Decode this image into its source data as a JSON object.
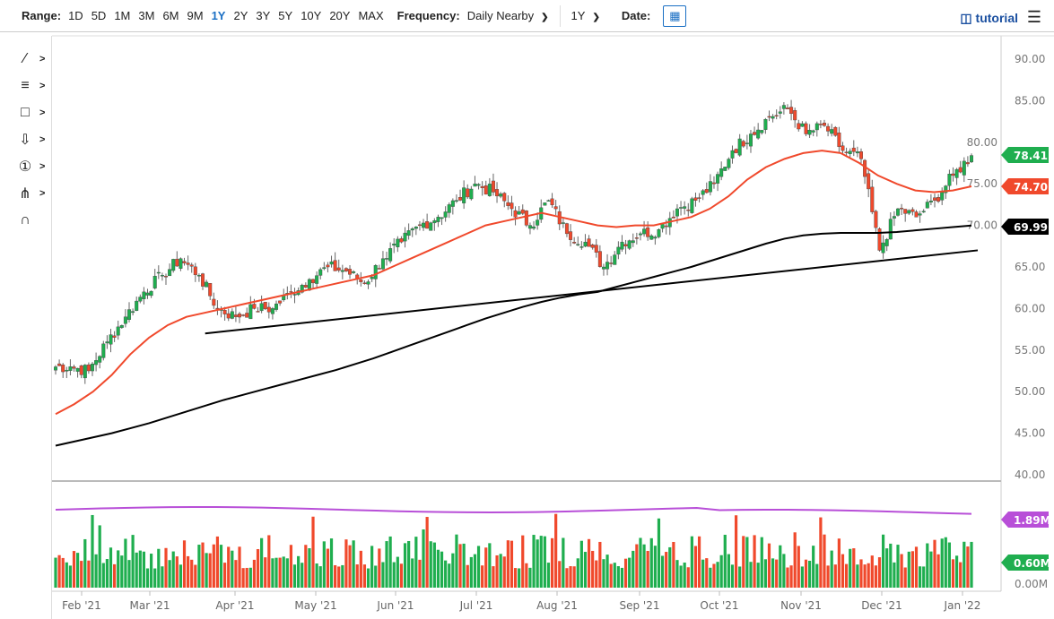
{
  "toolbar": {
    "range_label": "Range:",
    "ranges": [
      "1D",
      "5D",
      "1M",
      "3M",
      "6M",
      "9M",
      "1Y",
      "2Y",
      "3Y",
      "5Y",
      "10Y",
      "20Y",
      "MAX"
    ],
    "active_range": "1Y",
    "frequency_label": "Frequency:",
    "frequency_value": "Daily Nearby",
    "period_value": "1Y",
    "date_label": "Date:",
    "tutorial_label": "tutorial"
  },
  "tools": [
    "line-tool-icon",
    "list-tool-icon",
    "rectangle-tool-icon",
    "arrow-down-tool-icon",
    "number-marker-tool-icon",
    "fibonacci-tool-icon",
    "magnet-icon"
  ],
  "colors": {
    "up": "#1fae4f",
    "down": "#f0492c",
    "ma50": "#f0492c",
    "ma200": "#000000",
    "vol_ma": "#b84fd8",
    "accent": "#1a6fc4"
  },
  "chart_data": {
    "type": "candlestick",
    "x_tick_labels": [
      "Feb '21",
      "Mar '21",
      "Apr '21",
      "May '21",
      "Jun '21",
      "Jul '21",
      "Aug '21",
      "Sep '21",
      "Oct '21",
      "Nov '21",
      "Dec '21",
      "Jan '22"
    ],
    "y_tick_labels": [
      "90.00",
      "85.00",
      "80.00",
      "75.00",
      "70.00",
      "65.00",
      "60.00",
      "55.00",
      "50.00",
      "45.00",
      "40.00"
    ],
    "ylim": [
      40,
      90
    ],
    "weeks": [
      "Jan 25",
      "Feb 1",
      "Feb 8",
      "Feb 15",
      "Feb 22",
      "Mar 1",
      "Mar 8",
      "Mar 15",
      "Mar 22",
      "Mar 29",
      "Apr 5",
      "Apr 12",
      "Apr 19",
      "Apr 26",
      "May 3",
      "May 10",
      "May 17",
      "May 24",
      "May 31",
      "Jun 7",
      "Jun 14",
      "Jun 21",
      "Jun 28",
      "Jul 5",
      "Jul 12",
      "Jul 19",
      "Jul 26",
      "Aug 2",
      "Aug 9",
      "Aug 16",
      "Aug 23",
      "Aug 30",
      "Sep 6",
      "Sep 13",
      "Sep 20",
      "Sep 27",
      "Oct 4",
      "Oct 11",
      "Oct 18",
      "Oct 25",
      "Nov 1",
      "Nov 8",
      "Nov 15",
      "Nov 22",
      "Nov 29",
      "Dec 6",
      "Dec 13",
      "Dec 20",
      "Dec 27",
      "Jan 3"
    ],
    "weekly_close": [
      53,
      52.5,
      56,
      59,
      62,
      64,
      66,
      64,
      60,
      59,
      60,
      60,
      62,
      63.5,
      65,
      64.5,
      63,
      66,
      68,
      70,
      71,
      73,
      75,
      74,
      72,
      70,
      73,
      69,
      68,
      65,
      68,
      69,
      69.5,
      72,
      73,
      75,
      79,
      81,
      83,
      84,
      81,
      82,
      79,
      78,
      67,
      72,
      71,
      73,
      76,
      78.41
    ],
    "ma50": [
      47.3,
      48.5,
      50,
      52,
      54.5,
      56.5,
      58,
      59,
      59.5,
      60,
      60.5,
      61,
      61.5,
      62,
      62.5,
      63,
      63.5,
      64,
      65,
      66,
      67,
      68,
      69,
      70,
      70.5,
      71,
      71.5,
      71,
      70.5,
      70,
      69.8,
      70,
      70,
      70.5,
      71,
      72,
      73.5,
      75.5,
      77,
      78,
      78.7,
      79,
      78.7,
      77.5,
      76,
      75,
      74.2,
      74,
      74.2,
      74.7
    ],
    "ma200": [
      43.5,
      44,
      44.5,
      45,
      45.6,
      46.2,
      46.9,
      47.6,
      48.3,
      49,
      49.6,
      50.2,
      50.8,
      51.4,
      52,
      52.6,
      53.3,
      54,
      54.8,
      55.6,
      56.4,
      57.2,
      58,
      58.8,
      59.5,
      60.2,
      60.8,
      61.3,
      61.7,
      62,
      62.6,
      63.2,
      63.8,
      64.4,
      65,
      65.7,
      66.4,
      67.1,
      67.8,
      68.4,
      68.8,
      69,
      69.1,
      69.1,
      69.1,
      69.2,
      69.4,
      69.6,
      69.8,
      69.99
    ],
    "trendline": {
      "start": [
        "Mar 22",
        57
      ],
      "end": [
        "Jan 7",
        67
      ]
    },
    "last_price": "78.41",
    "ma50_label": "74.70",
    "ma200_label": "69.99",
    "volume": {
      "y_tick_labels": [
        "0.00M"
      ],
      "last_volume": "0.60M",
      "volume_ma": "1.89M",
      "ylim_millions": [
        0,
        2.6
      ]
    }
  }
}
